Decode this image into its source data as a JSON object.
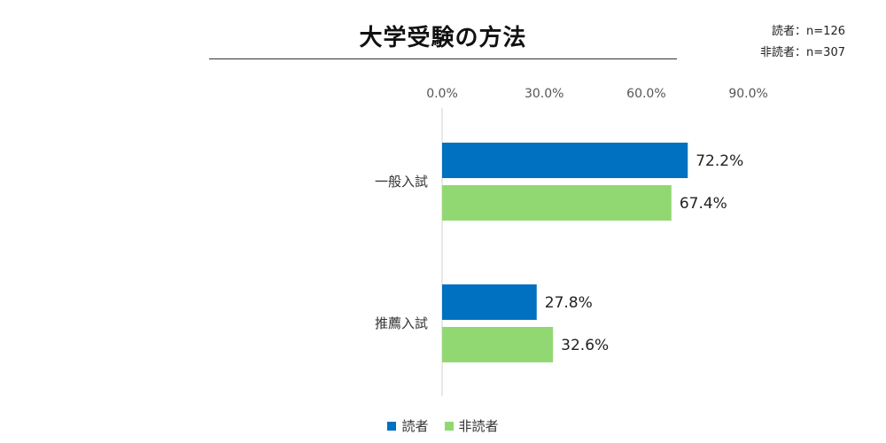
{
  "chart_data": {
    "type": "bar",
    "orientation": "horizontal",
    "title": "大学受験の方法",
    "sample_notes": [
      "読者：n=126",
      "非読者：n=307"
    ],
    "categories": [
      "一般入試",
      "推薦入試"
    ],
    "series": [
      {
        "name": "読者",
        "values": [
          72.2,
          27.8
        ],
        "labels": [
          "72.2%",
          "27.8%"
        ],
        "color": "#0070c0"
      },
      {
        "name": "非読者",
        "values": [
          67.4,
          32.6
        ],
        "labels": [
          "67.4%",
          "32.6%"
        ],
        "color": "#92d872"
      }
    ],
    "xticks": [
      0,
      30,
      60,
      90
    ],
    "xtick_labels": [
      "0.0%",
      "30.0%",
      "60.0%",
      "90.0%"
    ],
    "xlim": [
      0,
      100
    ],
    "axis_position": "top",
    "grid": false,
    "legend_position": "bottom"
  }
}
